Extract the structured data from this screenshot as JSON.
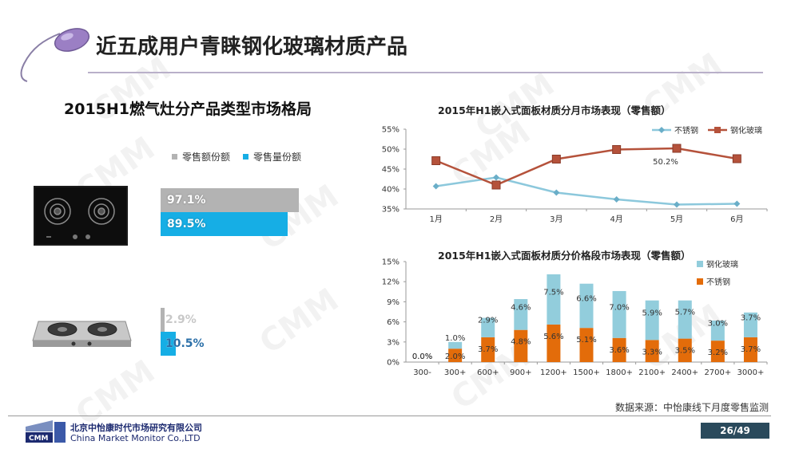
{
  "slide": {
    "title": "近五成用户青睐钢化玻璃材质产品",
    "source_note": "数据来源：中怡康线下月度零售监测",
    "page_number": "26/49",
    "watermark": "CMM",
    "company_cn": "北京中怡康时代市场研究有限公司",
    "company_en": "China Market Monitor Co.,LTD",
    "logo_text": "CMM"
  },
  "left_panel": {
    "heading": "2015H1燃气灶分产品类型市场格局",
    "legend": [
      {
        "label": "零售额份额",
        "color": "#b3b3b3"
      },
      {
        "label": "零售量份额",
        "color": "#16aee5"
      }
    ]
  },
  "chart_data": [
    {
      "type": "bar",
      "orientation": "horizontal",
      "title": "",
      "categories": [
        "钢化玻璃",
        "不锈钢"
      ],
      "series": [
        {
          "name": "零售额份额",
          "color": "#b3b3b3",
          "values": [
            97.1,
            2.9
          ],
          "labels": [
            "97.1%",
            "2.9%"
          ]
        },
        {
          "name": "零售量份额",
          "color": "#16aee5",
          "values": [
            89.5,
            10.5
          ],
          "labels": [
            "89.5%",
            "10.5%"
          ]
        }
      ],
      "xlim": [
        0,
        100
      ]
    },
    {
      "type": "line",
      "title": "2015年H1嵌入式面板材质分月市场表现（零售额）",
      "categories": [
        "1月",
        "2月",
        "3月",
        "4月",
        "5月",
        "6月"
      ],
      "y_ticks": [
        "35%",
        "40%",
        "45%",
        "50%",
        "55%"
      ],
      "ylim": [
        35,
        55
      ],
      "legend_position": "top-right",
      "series": [
        {
          "name": "不锈钢",
          "color": "#8cc8dc",
          "marker": "diamond",
          "values": [
            40.7,
            42.9,
            39.1,
            37.4,
            36.1,
            36.3
          ]
        },
        {
          "name": "钢化玻璃",
          "color": "#b5523b",
          "marker": "square",
          "values": [
            47.1,
            41.0,
            47.5,
            49.9,
            50.2,
            47.6
          ]
        }
      ],
      "annotations": [
        {
          "series": "钢化玻璃",
          "index": 4,
          "text": "50.2%"
        }
      ]
    },
    {
      "type": "bar",
      "stacked": true,
      "title": "2015年H1嵌入式面板材质分价格段市场表现（零售额）",
      "categories": [
        "300-",
        "300+",
        "600+",
        "900+",
        "1200+",
        "1500+",
        "1800+",
        "2100+",
        "2400+",
        "2700+",
        "3000+"
      ],
      "y_ticks": [
        "0%",
        "3%",
        "6%",
        "9%",
        "12%",
        "15%"
      ],
      "ylim": [
        0,
        15
      ],
      "legend_position": "top-right",
      "series": [
        {
          "name": "不锈钢",
          "color": "#e36c0a",
          "values": [
            0.0,
            2.0,
            3.7,
            4.8,
            5.6,
            5.1,
            3.6,
            3.3,
            3.5,
            3.2,
            3.7
          ],
          "labels": [
            "0.0%",
            "2.0%",
            "3.7%",
            "4.8%",
            "5.6%",
            "5.1%",
            "3.6%",
            "3.3%",
            "3.5%",
            "3.2%",
            "3.7%"
          ]
        },
        {
          "name": "钢化玻璃",
          "color": "#92cddc",
          "values": [
            0.0,
            1.0,
            2.9,
            4.6,
            7.5,
            6.6,
            7.0,
            5.9,
            5.7,
            3.0,
            3.7
          ],
          "labels": [
            "0.0%",
            "1.0%",
            "2.9%",
            "4.6%",
            "7.5%",
            "6.6%",
            "7.0%",
            "5.9%",
            "5.7%",
            "3.0%",
            "3.7%"
          ]
        }
      ]
    }
  ]
}
